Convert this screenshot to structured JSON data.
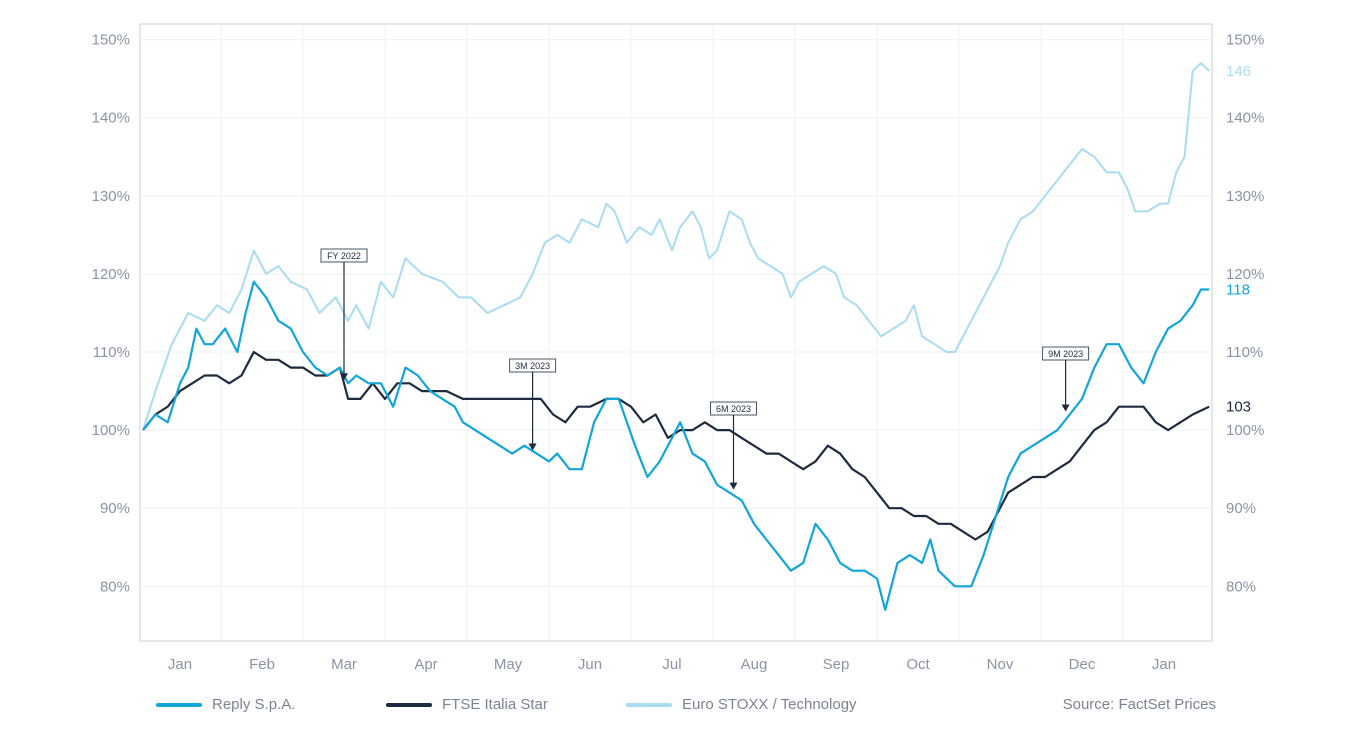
{
  "chart_data": {
    "type": "line",
    "source": "Source: FactSet Prices",
    "y_ticks": [
      "80%",
      "90%",
      "100%",
      "110%",
      "120%",
      "130%",
      "140%",
      "150%"
    ],
    "ylim": [
      73,
      152
    ],
    "x_months": [
      "Jan",
      "Feb",
      "Mar",
      "Apr",
      "May",
      "Jun",
      "Jul",
      "Aug",
      "Sep",
      "Oct",
      "Nov",
      "Dec",
      "Jan"
    ],
    "x_label": "",
    "y_label": "",
    "annotations": [
      {
        "label": "FY 2022",
        "x": 2.0
      },
      {
        "label": "3M 2023",
        "x": 4.3
      },
      {
        "label": "6M 2023",
        "x": 6.75
      },
      {
        "label": "9M 2023",
        "x": 10.8
      }
    ],
    "series": [
      {
        "name": "Euro STOXX / Technology",
        "color": "#a9dcf0",
        "end_label": "146",
        "points": [
          [
            -0.45,
            100
          ],
          [
            -0.3,
            105
          ],
          [
            -0.1,
            111
          ],
          [
            0.1,
            115
          ],
          [
            0.3,
            114
          ],
          [
            0.45,
            116
          ],
          [
            0.6,
            115
          ],
          [
            0.75,
            118
          ],
          [
            0.9,
            123
          ],
          [
            1.05,
            120
          ],
          [
            1.2,
            121
          ],
          [
            1.35,
            119
          ],
          [
            1.55,
            118
          ],
          [
            1.7,
            115
          ],
          [
            1.9,
            117
          ],
          [
            2.05,
            114
          ],
          [
            2.15,
            116
          ],
          [
            2.3,
            113
          ],
          [
            2.45,
            119
          ],
          [
            2.6,
            117
          ],
          [
            2.75,
            122
          ],
          [
            2.95,
            120
          ],
          [
            3.2,
            119
          ],
          [
            3.4,
            117
          ],
          [
            3.55,
            117
          ],
          [
            3.75,
            115
          ],
          [
            3.95,
            116
          ],
          [
            4.15,
            117
          ],
          [
            4.3,
            120
          ],
          [
            4.45,
            124
          ],
          [
            4.6,
            125
          ],
          [
            4.75,
            124
          ],
          [
            4.9,
            127
          ],
          [
            5.1,
            126
          ],
          [
            5.2,
            129
          ],
          [
            5.3,
            128
          ],
          [
            5.45,
            124
          ],
          [
            5.6,
            126
          ],
          [
            5.75,
            125
          ],
          [
            5.85,
            127
          ],
          [
            6.0,
            123
          ],
          [
            6.1,
            126
          ],
          [
            6.25,
            128
          ],
          [
            6.35,
            126
          ],
          [
            6.45,
            122
          ],
          [
            6.55,
            123
          ],
          [
            6.7,
            128
          ],
          [
            6.85,
            127
          ],
          [
            6.95,
            124
          ],
          [
            7.05,
            122
          ],
          [
            7.2,
            121
          ],
          [
            7.35,
            120
          ],
          [
            7.45,
            117
          ],
          [
            7.55,
            119
          ],
          [
            7.7,
            120
          ],
          [
            7.85,
            121
          ],
          [
            8.0,
            120
          ],
          [
            8.1,
            117
          ],
          [
            8.25,
            116
          ],
          [
            8.4,
            114
          ],
          [
            8.55,
            112
          ],
          [
            8.7,
            113
          ],
          [
            8.85,
            114
          ],
          [
            8.95,
            116
          ],
          [
            9.05,
            112
          ],
          [
            9.2,
            111
          ],
          [
            9.35,
            110
          ],
          [
            9.45,
            110
          ],
          [
            9.55,
            112
          ],
          [
            9.7,
            115
          ],
          [
            9.85,
            118
          ],
          [
            10.0,
            121
          ],
          [
            10.1,
            124
          ],
          [
            10.25,
            127
          ],
          [
            10.4,
            128
          ],
          [
            10.55,
            130
          ],
          [
            10.7,
            132
          ],
          [
            10.85,
            134
          ],
          [
            11.0,
            136
          ],
          [
            11.15,
            135
          ],
          [
            11.3,
            133
          ],
          [
            11.45,
            133
          ],
          [
            11.55,
            131
          ],
          [
            11.65,
            128
          ],
          [
            11.8,
            128
          ],
          [
            11.95,
            129
          ],
          [
            12.05,
            129
          ],
          [
            12.15,
            133
          ],
          [
            12.25,
            135
          ],
          [
            12.35,
            146
          ],
          [
            12.45,
            147
          ],
          [
            12.55,
            146
          ]
        ]
      },
      {
        "name": "FTSE Italia Star",
        "color": "#1c2b3f",
        "end_label": "103",
        "points": [
          [
            -0.45,
            100
          ],
          [
            -0.3,
            102
          ],
          [
            -0.15,
            103
          ],
          [
            0.0,
            105
          ],
          [
            0.15,
            106
          ],
          [
            0.3,
            107
          ],
          [
            0.45,
            107
          ],
          [
            0.6,
            106
          ],
          [
            0.75,
            107
          ],
          [
            0.9,
            110
          ],
          [
            1.05,
            109
          ],
          [
            1.2,
            109
          ],
          [
            1.35,
            108
          ],
          [
            1.5,
            108
          ],
          [
            1.65,
            107
          ],
          [
            1.8,
            107
          ],
          [
            1.95,
            108
          ],
          [
            2.05,
            104
          ],
          [
            2.2,
            104
          ],
          [
            2.35,
            106
          ],
          [
            2.5,
            104
          ],
          [
            2.65,
            106
          ],
          [
            2.8,
            106
          ],
          [
            2.95,
            105
          ],
          [
            3.1,
            105
          ],
          [
            3.25,
            105
          ],
          [
            3.45,
            104
          ],
          [
            3.65,
            104
          ],
          [
            3.85,
            104
          ],
          [
            4.05,
            104
          ],
          [
            4.25,
            104
          ],
          [
            4.4,
            104
          ],
          [
            4.55,
            102
          ],
          [
            4.7,
            101
          ],
          [
            4.85,
            103
          ],
          [
            5.0,
            103
          ],
          [
            5.2,
            104
          ],
          [
            5.35,
            104
          ],
          [
            5.5,
            103
          ],
          [
            5.65,
            101
          ],
          [
            5.8,
            102
          ],
          [
            5.95,
            99
          ],
          [
            6.1,
            100
          ],
          [
            6.25,
            100
          ],
          [
            6.4,
            101
          ],
          [
            6.55,
            100
          ],
          [
            6.7,
            100
          ],
          [
            6.85,
            99
          ],
          [
            7.0,
            98
          ],
          [
            7.15,
            97
          ],
          [
            7.3,
            97
          ],
          [
            7.45,
            96
          ],
          [
            7.6,
            95
          ],
          [
            7.75,
            96
          ],
          [
            7.9,
            98
          ],
          [
            8.05,
            97
          ],
          [
            8.2,
            95
          ],
          [
            8.35,
            94
          ],
          [
            8.5,
            92
          ],
          [
            8.65,
            90
          ],
          [
            8.8,
            90
          ],
          [
            8.95,
            89
          ],
          [
            9.1,
            89
          ],
          [
            9.25,
            88
          ],
          [
            9.4,
            88
          ],
          [
            9.55,
            87
          ],
          [
            9.7,
            86
          ],
          [
            9.85,
            87
          ],
          [
            9.95,
            89
          ],
          [
            10.1,
            92
          ],
          [
            10.25,
            93
          ],
          [
            10.4,
            94
          ],
          [
            10.55,
            94
          ],
          [
            10.7,
            95
          ],
          [
            10.85,
            96
          ],
          [
            11.0,
            98
          ],
          [
            11.15,
            100
          ],
          [
            11.3,
            101
          ],
          [
            11.45,
            103
          ],
          [
            11.6,
            103
          ],
          [
            11.75,
            103
          ],
          [
            11.9,
            101
          ],
          [
            12.05,
            100
          ],
          [
            12.2,
            101
          ],
          [
            12.35,
            102
          ],
          [
            12.55,
            103
          ]
        ]
      },
      {
        "name": "Reply S.p.A.",
        "color": "#12a5d8",
        "end_label": "118",
        "points": [
          [
            -0.45,
            100
          ],
          [
            -0.3,
            102
          ],
          [
            -0.15,
            101
          ],
          [
            0.0,
            106
          ],
          [
            0.1,
            108
          ],
          [
            0.2,
            113
          ],
          [
            0.3,
            111
          ],
          [
            0.4,
            111
          ],
          [
            0.55,
            113
          ],
          [
            0.7,
            110
          ],
          [
            0.8,
            115
          ],
          [
            0.9,
            119
          ],
          [
            1.05,
            117
          ],
          [
            1.2,
            114
          ],
          [
            1.35,
            113
          ],
          [
            1.5,
            110
          ],
          [
            1.65,
            108
          ],
          [
            1.8,
            107
          ],
          [
            1.95,
            108
          ],
          [
            2.05,
            106
          ],
          [
            2.15,
            107
          ],
          [
            2.3,
            106
          ],
          [
            2.45,
            106
          ],
          [
            2.6,
            103
          ],
          [
            2.75,
            108
          ],
          [
            2.9,
            107
          ],
          [
            3.05,
            105
          ],
          [
            3.2,
            104
          ],
          [
            3.35,
            103
          ],
          [
            3.45,
            101
          ],
          [
            3.6,
            100
          ],
          [
            3.75,
            99
          ],
          [
            3.9,
            98
          ],
          [
            4.05,
            97
          ],
          [
            4.2,
            98
          ],
          [
            4.35,
            97
          ],
          [
            4.5,
            96
          ],
          [
            4.6,
            97
          ],
          [
            4.75,
            95
          ],
          [
            4.9,
            95
          ],
          [
            5.05,
            101
          ],
          [
            5.2,
            104
          ],
          [
            5.35,
            104
          ],
          [
            5.45,
            101
          ],
          [
            5.55,
            98
          ],
          [
            5.7,
            94
          ],
          [
            5.85,
            96
          ],
          [
            6.0,
            99
          ],
          [
            6.1,
            101
          ],
          [
            6.25,
            97
          ],
          [
            6.4,
            96
          ],
          [
            6.55,
            93
          ],
          [
            6.7,
            92
          ],
          [
            6.85,
            91
          ],
          [
            7.0,
            88
          ],
          [
            7.15,
            86
          ],
          [
            7.3,
            84
          ],
          [
            7.45,
            82
          ],
          [
            7.6,
            83
          ],
          [
            7.75,
            88
          ],
          [
            7.9,
            86
          ],
          [
            8.05,
            83
          ],
          [
            8.2,
            82
          ],
          [
            8.35,
            82
          ],
          [
            8.5,
            81
          ],
          [
            8.6,
            77
          ],
          [
            8.75,
            83
          ],
          [
            8.9,
            84
          ],
          [
            9.05,
            83
          ],
          [
            9.15,
            86
          ],
          [
            9.25,
            82
          ],
          [
            9.35,
            81
          ],
          [
            9.45,
            80
          ],
          [
            9.55,
            80
          ],
          [
            9.65,
            80
          ],
          [
            9.8,
            84
          ],
          [
            9.95,
            89
          ],
          [
            10.1,
            94
          ],
          [
            10.25,
            97
          ],
          [
            10.4,
            98
          ],
          [
            10.55,
            99
          ],
          [
            10.7,
            100
          ],
          [
            10.85,
            102
          ],
          [
            11.0,
            104
          ],
          [
            11.15,
            108
          ],
          [
            11.3,
            111
          ],
          [
            11.45,
            111
          ],
          [
            11.6,
            108
          ],
          [
            11.75,
            106
          ],
          [
            11.9,
            110
          ],
          [
            12.05,
            113
          ],
          [
            12.2,
            114
          ],
          [
            12.35,
            116
          ],
          [
            12.45,
            118
          ],
          [
            12.55,
            118
          ]
        ]
      }
    ]
  }
}
